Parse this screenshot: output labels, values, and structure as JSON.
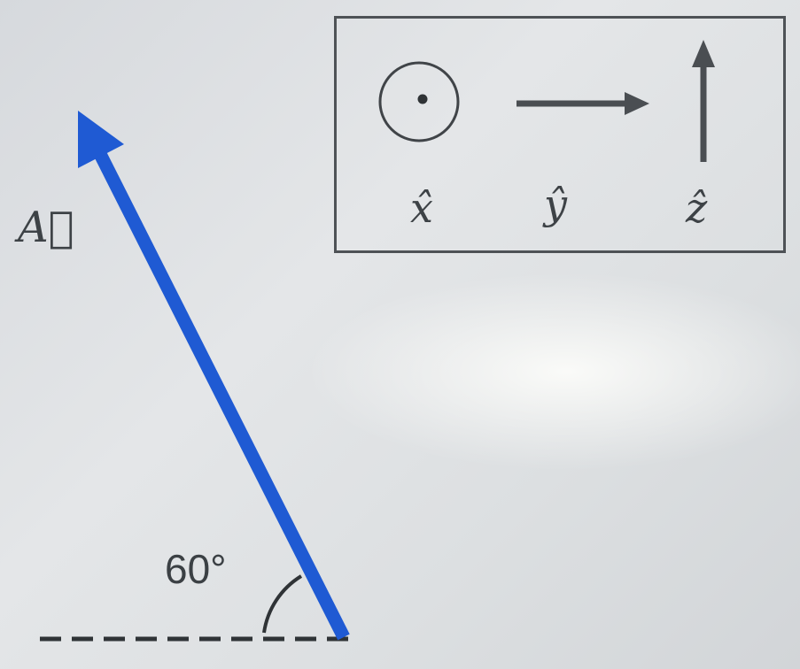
{
  "diagram": {
    "vector_label": "A⃗",
    "angle_label": "60°",
    "angle_degrees": 60,
    "vector_color": "#1f5ad3",
    "ink_color": "#3d4246"
  },
  "legend": {
    "x_label": "x̂",
    "y_label": "ŷ",
    "z_label": "ẑ",
    "x_icon": "out-of-page-dot-icon",
    "y_icon": "arrow-right-icon",
    "z_icon": "arrow-up-icon"
  }
}
